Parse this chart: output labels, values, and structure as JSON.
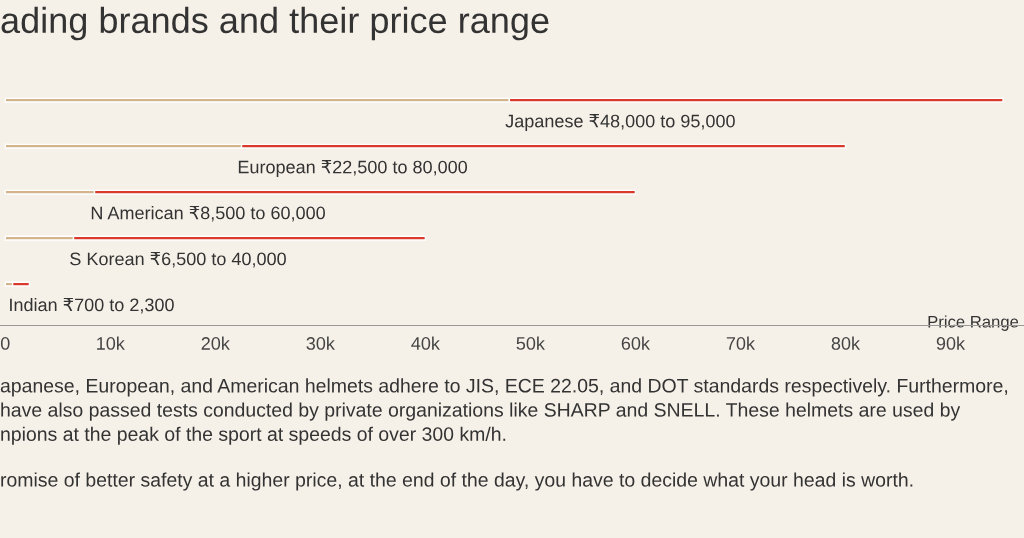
{
  "chart_data": {
    "type": "bar",
    "orientation": "horizontal",
    "stacked": true,
    "title": "ading brands and their price range",
    "xlabel": "Price Range",
    "categories": [
      "Japanese ₹48,000 to 95,000",
      "European ₹22,500 to 80,000",
      "N American ₹8,500 to 60,000",
      "S Korean ₹6,500 to 40,000",
      "Indian ₹700 to 2,300"
    ],
    "series": [
      {
        "color": "#d3b48c",
        "values": [
          48000,
          22500,
          8500,
          6500,
          700
        ]
      },
      {
        "color": "#d93a2b",
        "values": [
          47000,
          57500,
          51500,
          33500,
          1600
        ]
      }
    ],
    "xlim": [
      -500,
      97000
    ],
    "xticks": [
      0,
      {
        "value": 10000,
        "label": "10k"
      },
      {
        "value": 20000,
        "label": "20k"
      },
      {
        "value": 30000,
        "label": "30k"
      },
      {
        "value": 40000,
        "label": "40k"
      },
      {
        "value": 50000,
        "label": "50k"
      },
      {
        "value": 60000,
        "label": "60k"
      },
      {
        "value": 70000,
        "label": "70k"
      },
      {
        "value": 80000,
        "label": "80k"
      },
      {
        "value": 90000,
        "label": "90k"
      }
    ],
    "grid": false,
    "legend": false,
    "annotations": [
      "apanese, European, and American helmets adhere to JIS, ECE 22.05, and DOT standards respectively. Furthermore,",
      "have also passed tests conducted by private organizations like SHARP and SNELL. These helmets are used by",
      "npions at the peak of the sport at speeds of over 300 km/h.",
      "romise of better safety at a higher price, at the end of the day, you have to decide what your head is worth."
    ]
  }
}
